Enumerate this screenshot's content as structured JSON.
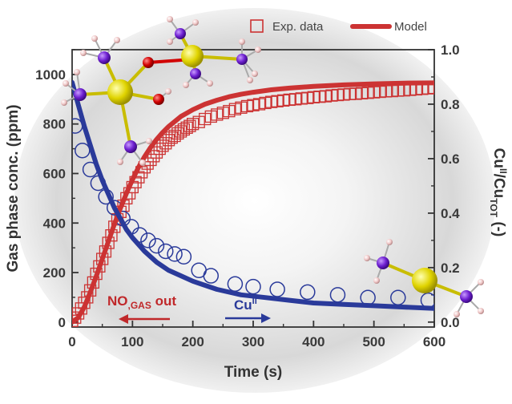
{
  "chart_data": {
    "type": "scatter",
    "xlabel": "Time (s)",
    "ylabel_left": "Gas phase conc. (ppm)",
    "ylabel_right": "Cu^II/Cu_TOT (-)",
    "xlim": [
      0,
      600
    ],
    "ylim_left": [
      -20,
      1100
    ],
    "ylim_right": [
      -0.0182,
      1.0
    ],
    "x_ticks": [
      0,
      100,
      200,
      300,
      400,
      500,
      600
    ],
    "y_left_ticks": [
      0,
      200,
      400,
      600,
      800,
      1000
    ],
    "y_right_ticks": [
      0.0,
      0.2,
      0.4,
      0.6,
      0.8,
      1.0
    ],
    "x_tick_labels": [
      "0",
      "100",
      "200",
      "300",
      "400",
      "500",
      "600"
    ],
    "y_left_tick_labels": [
      "0",
      "200",
      "400",
      "600",
      "800",
      "1000"
    ],
    "y_right_tick_labels": [
      "0.0",
      "0.2",
      "0.4",
      "0.6",
      "0.8",
      "1.0"
    ],
    "legend": {
      "position": "top-right",
      "items": [
        "Exp. data",
        "Model"
      ]
    },
    "series": [
      {
        "name": "NO gas out (Exp. data)",
        "axis": "left",
        "marker": "open-square",
        "color": "#cc3333",
        "x": [
          0,
          5,
          10,
          15,
          20,
          25,
          30,
          35,
          40,
          45,
          50,
          55,
          60,
          65,
          70,
          75,
          80,
          85,
          90,
          95,
          100,
          105,
          110,
          115,
          120,
          125,
          130,
          135,
          140,
          145,
          150,
          155,
          160,
          165,
          170,
          175,
          180,
          185,
          190,
          195,
          200,
          210,
          220,
          230,
          240,
          250,
          260,
          270,
          280,
          290,
          300,
          310,
          320,
          330,
          340,
          350,
          360,
          370,
          380,
          390,
          400,
          410,
          420,
          430,
          440,
          450,
          460,
          470,
          480,
          490,
          500,
          510,
          520,
          530,
          540,
          550,
          560,
          570,
          580,
          590,
          600
        ],
        "y": [
          5,
          18,
          35,
          55,
          78,
          100,
          128,
          160,
          195,
          225,
          255,
          285,
          320,
          350,
          385,
          415,
          445,
          470,
          500,
          520,
          545,
          565,
          585,
          605,
          625,
          640,
          655,
          670,
          685,
          700,
          712,
          722,
          735,
          745,
          752,
          762,
          770,
          778,
          785,
          792,
          800,
          808,
          820,
          830,
          838,
          845,
          852,
          860,
          866,
          872,
          876,
          880,
          885,
          889,
          892,
          895,
          898,
          900,
          903,
          905,
          908,
          910,
          912,
          915,
          917,
          919,
          921,
          922,
          924,
          926,
          928,
          930,
          932,
          933,
          935,
          936,
          938,
          940,
          942,
          944,
          946
        ]
      },
      {
        "name": "NO gas out (Model)",
        "axis": "left",
        "line": true,
        "color": "#cc3333",
        "x": [
          0,
          10,
          20,
          30,
          40,
          50,
          60,
          70,
          80,
          90,
          100,
          110,
          120,
          130,
          140,
          150,
          160,
          180,
          200,
          220,
          240,
          260,
          280,
          300,
          330,
          360,
          400,
          450,
          500,
          550,
          600
        ],
        "y": [
          0,
          18,
          60,
          120,
          185,
          255,
          325,
          395,
          460,
          520,
          575,
          625,
          668,
          705,
          738,
          766,
          790,
          830,
          858,
          880,
          896,
          910,
          920,
          928,
          938,
          945,
          952,
          958,
          962,
          965,
          966
        ]
      },
      {
        "name": "Cu^II (Exp. data)",
        "axis": "right",
        "marker": "open-circle",
        "color": "#2a3a9a",
        "x": [
          5,
          17,
          30,
          43,
          56,
          70,
          84,
          98,
          112,
          126,
          140,
          155,
          170,
          185,
          210,
          230,
          270,
          300,
          340,
          390,
          440,
          490,
          540,
          590
        ],
        "y": [
          0.72,
          0.63,
          0.56,
          0.51,
          0.46,
          0.42,
          0.38,
          0.35,
          0.32,
          0.3,
          0.28,
          0.26,
          0.25,
          0.24,
          0.19,
          0.17,
          0.14,
          0.13,
          0.12,
          0.11,
          0.1,
          0.09,
          0.09,
          0.08
        ]
      },
      {
        "name": "Cu^II (Model)",
        "axis": "right",
        "line": true,
        "color": "#2a3a9a",
        "x": [
          0,
          10,
          20,
          30,
          40,
          50,
          60,
          70,
          80,
          90,
          100,
          120,
          140,
          160,
          180,
          200,
          240,
          280,
          320,
          360,
          400,
          450,
          500,
          550,
          600
        ],
        "y": [
          0.88,
          0.8,
          0.72,
          0.65,
          0.58,
          0.52,
          0.47,
          0.42,
          0.38,
          0.34,
          0.31,
          0.26,
          0.22,
          0.19,
          0.17,
          0.15,
          0.12,
          0.1,
          0.09,
          0.08,
          0.07,
          0.065,
          0.06,
          0.055,
          0.05
        ]
      }
    ],
    "annotations": {
      "left_arrow_label": "NO,GAS out",
      "right_arrow_label": "Cu"
    }
  },
  "labels": {
    "xlabel": "Time (s)",
    "ylabel_left": "Gas phase conc. (ppm)",
    "legend_exp": "Exp. data",
    "legend_model": "Model",
    "ann_no_main": "NO",
    "ann_no_sub": ",GAS",
    "ann_no_tail": " out",
    "ann_cu_main": "Cu",
    "ann_cu_sup": "II",
    "ylabel_right_main": "Cu",
    "ylabel_right_sup": "II",
    "ylabel_right_mid": "/Cu",
    "ylabel_right_sub": "TOT",
    "ylabel_right_tail": " (-)"
  },
  "colors": {
    "no": "#cc3333",
    "cu": "#2a3a9a",
    "axis": "#333333"
  },
  "icons": [
    "molecule-top-left-icon",
    "molecule-top-right-icon",
    "molecule-right-icon"
  ]
}
